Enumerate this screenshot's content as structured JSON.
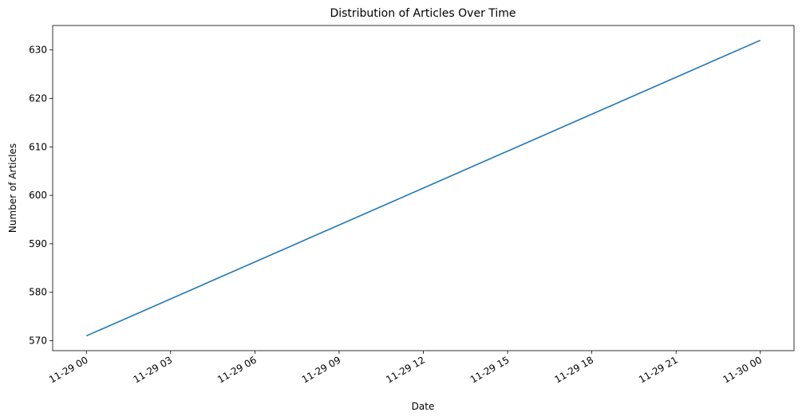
{
  "chart_data": {
    "type": "line",
    "title": "Distribution of Articles Over Time",
    "x_label": "Date",
    "y_label": "Number of Articles",
    "x": [
      "11-29 00",
      "11-30 00"
    ],
    "series": [
      {
        "name": "Number of Articles",
        "color": "#1f77b4",
        "values": [
          571,
          632
        ]
      }
    ],
    "xlim": [
      "11-28 22:48",
      "11-30 01:12"
    ],
    "xticks": [
      "11-29 00",
      "11-29 03",
      "11-29 06",
      "11-29 09",
      "11-29 12",
      "11-29 15",
      "11-29 18",
      "11-29 21",
      "11-30 00"
    ],
    "ylim": [
      567.95,
      635.05
    ],
    "yticks": [
      570,
      580,
      590,
      600,
      610,
      620,
      630
    ],
    "grid": false
  }
}
